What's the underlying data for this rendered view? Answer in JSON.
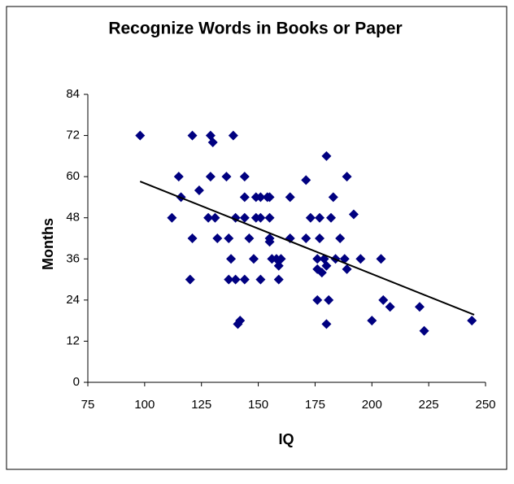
{
  "chart_data": {
    "type": "scatter",
    "title": "Recognize Words in Books or Paper",
    "x_label": "IQ",
    "y_label": "Months",
    "xlim": [
      75,
      250
    ],
    "xticks": [
      75,
      100,
      125,
      150,
      175,
      200,
      225,
      250
    ],
    "ylim": [
      0,
      84
    ],
    "yticks": [
      0,
      12,
      24,
      36,
      48,
      60,
      72,
      84
    ],
    "grid": false,
    "color": "#000080",
    "x": [
      98,
      112,
      115,
      116,
      120,
      121,
      121,
      124,
      128,
      129,
      129,
      130,
      131,
      132,
      136,
      137,
      137,
      138,
      139,
      140,
      140,
      141,
      142,
      144,
      144,
      144,
      144,
      146,
      148,
      149,
      149,
      151,
      151,
      151,
      154,
      155,
      155,
      155,
      155,
      156,
      158,
      159,
      159,
      160,
      164,
      164,
      171,
      171,
      173,
      176,
      176,
      176,
      177,
      177,
      178,
      179,
      180,
      180,
      180,
      181,
      182,
      183,
      184,
      186,
      188,
      189,
      189,
      192,
      195,
      200,
      204,
      205,
      208,
      221,
      223,
      244
    ],
    "values": [
      72,
      48,
      60,
      54,
      30,
      42,
      72,
      56,
      48,
      72,
      60,
      70,
      48,
      42,
      60,
      42,
      30,
      36,
      72,
      48,
      30,
      17,
      18,
      60,
      54,
      48,
      30,
      42,
      36,
      54,
      48,
      30,
      48,
      54,
      54,
      54,
      42,
      41,
      48,
      36,
      36,
      34,
      30,
      36,
      54,
      42,
      59,
      42,
      48,
      36,
      33,
      24,
      48,
      42,
      32,
      36,
      66,
      34,
      17,
      24,
      48,
      54,
      36,
      42,
      36,
      33,
      60,
      49,
      36,
      18,
      36,
      24,
      22,
      22,
      15,
      18
    ],
    "trendline": {
      "x": [
        98,
        245
      ],
      "values": [
        58.6,
        19.7
      ],
      "color": "#000000"
    }
  }
}
